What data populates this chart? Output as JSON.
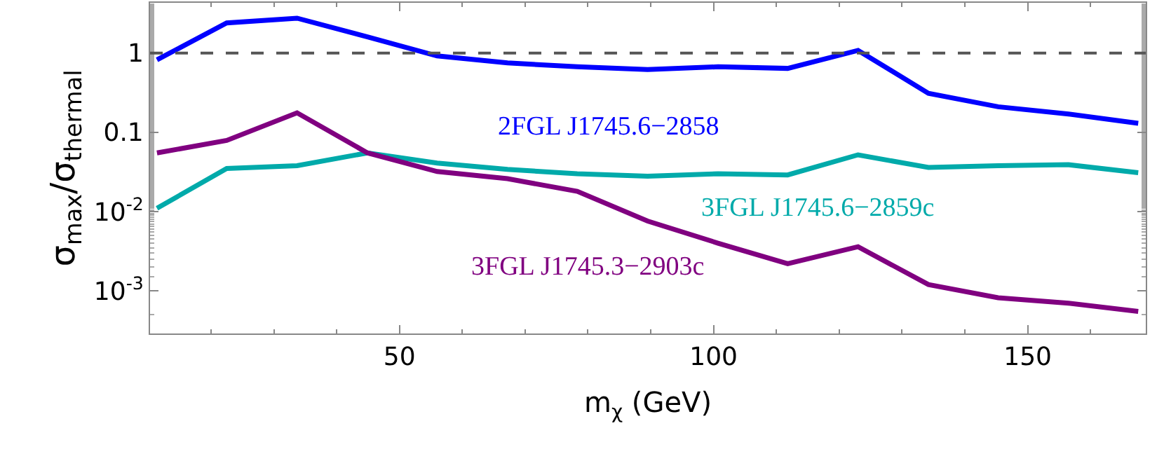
{
  "chart_data": {
    "type": "line",
    "xlabel": "m$_{χ}$ (GeV)",
    "ylabel": "σ$_{max}$/σ$_{thermal}$",
    "x": [
      11.4,
      22.5,
      33.7,
      44.9,
      56.0,
      67.2,
      78.3,
      89.5,
      100.7,
      111.8,
      123.0,
      134.2,
      145.3,
      156.5,
      167.6
    ],
    "series": [
      {
        "name": "2FGL J1745.6−2858",
        "color": "#0000ff",
        "values": [
          0.82,
          2.4,
          2.75,
          1.6,
          0.92,
          0.75,
          0.67,
          0.62,
          0.67,
          0.64,
          1.08,
          0.31,
          0.21,
          0.17,
          0.13
        ]
      },
      {
        "name": "3FGL J1745.6−2859c",
        "color": "#00aaaa",
        "values": [
          0.011,
          0.035,
          0.038,
          0.055,
          0.041,
          0.034,
          0.03,
          0.028,
          0.03,
          0.029,
          0.052,
          0.036,
          0.038,
          0.039,
          0.031
        ]
      },
      {
        "name": "3FGL J1745.3−2903c",
        "color": "#800080",
        "values": [
          0.055,
          0.079,
          0.176,
          0.055,
          0.032,
          0.026,
          0.018,
          0.0076,
          0.004,
          0.0022,
          0.0036,
          0.0012,
          0.00082,
          0.0007,
          0.00055
        ]
      }
    ],
    "xlim": [
      10.3,
      168.8
    ],
    "xticks": [
      50,
      100,
      150
    ],
    "ylim": [
      0.00029,
      4.3
    ],
    "log": "y",
    "yticks": [
      {
        "value": 0.001,
        "label": "10$^{-3}$"
      },
      {
        "value": 0.01,
        "label": "10$^{-2}$"
      },
      0.1,
      1
    ],
    "ref_lines": [
      {
        "axis": "y",
        "value": 1,
        "color": "#555555",
        "line_style": "dashed"
      }
    ],
    "legend": false,
    "line_style": "solid",
    "marker": "none"
  }
}
